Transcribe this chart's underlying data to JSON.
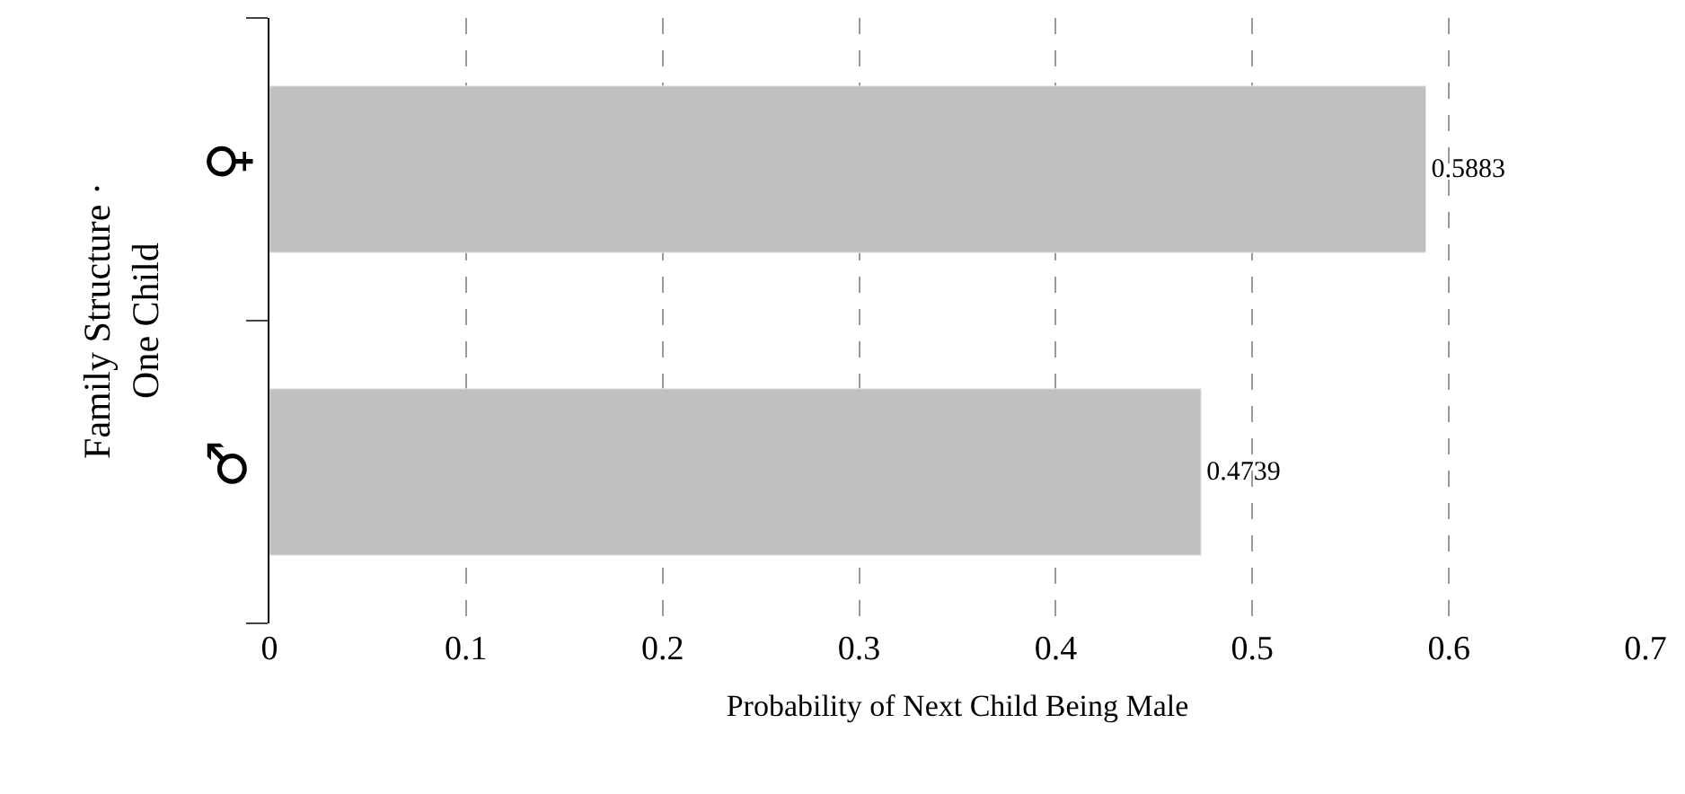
{
  "chart_data": {
    "type": "bar",
    "orientation": "horizontal",
    "categories": [
      "♀",
      "♂"
    ],
    "values": [
      0.5883,
      0.4739
    ],
    "color": "#c0c0c0",
    "xlabel": "Probability of Next Child Being Male",
    "ylabel": "Family Structure ·\nOne Child",
    "xlim": [
      0,
      0.7
    ],
    "xticks": [
      0,
      0.1,
      0.2,
      0.3,
      0.4,
      0.5,
      0.6,
      0.7
    ],
    "grid": "x",
    "data_labels": true,
    "legend": false
  }
}
